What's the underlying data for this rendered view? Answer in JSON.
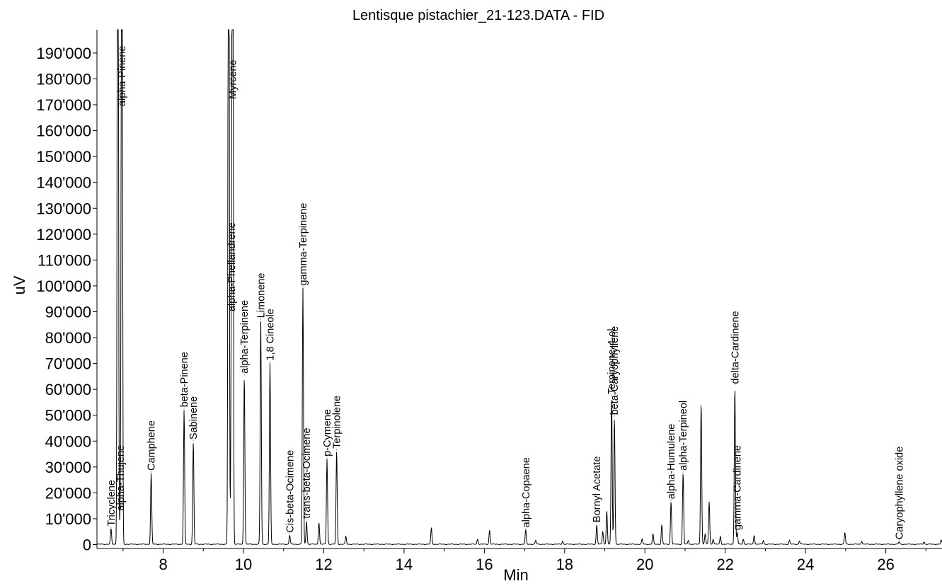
{
  "chart_data": {
    "type": "line",
    "title": "Lentisque pistachier_21-123.DATA - FID",
    "xlabel": "Min",
    "ylabel": "uV",
    "xlim": [
      6.35,
      27.4
    ],
    "ylim": [
      -1500,
      199000
    ],
    "xticks": [
      8,
      10,
      12,
      14,
      16,
      18,
      20,
      22,
      24,
      26
    ],
    "xtick_labels": [
      "8",
      "10",
      "12",
      "14",
      "16",
      "18",
      "20",
      "22",
      "24",
      "26"
    ],
    "yticks": [
      0,
      10000,
      20000,
      30000,
      40000,
      50000,
      60000,
      70000,
      80000,
      90000,
      100000,
      110000,
      120000,
      130000,
      140000,
      150000,
      160000,
      170000,
      180000,
      190000
    ],
    "ytick_labels": [
      "0",
      "10'000",
      "20'000",
      "30'000",
      "40'000",
      "50'000",
      "60'000",
      "70'000",
      "80'000",
      "90'000",
      "100'000",
      "110'000",
      "120'000",
      "130'000",
      "140'000",
      "150'000",
      "160'000",
      "170'000",
      "180'000",
      "190'000"
    ],
    "grid": false,
    "peaks": [
      {
        "rt": 6.7,
        "height": 6000,
        "label": "Tricyclene"
      },
      {
        "rt": 6.87,
        "height": 400000,
        "label": ""
      },
      {
        "rt": 6.93,
        "height": 12000,
        "label": "alpha-Thujene"
      },
      {
        "rt": 6.97,
        "height": 400000,
        "label": "alpha-Pinene"
      },
      {
        "rt": 7.7,
        "height": 27500,
        "label": "Camphene"
      },
      {
        "rt": 8.52,
        "height": 52000,
        "label": "beta-Pinene"
      },
      {
        "rt": 8.75,
        "height": 39500,
        "label": "Sabinene"
      },
      {
        "rt": 9.63,
        "height": 400000,
        "label": ""
      },
      {
        "rt": 9.73,
        "height": 400000,
        "label": "Myrcene"
      },
      {
        "rt": 9.7,
        "height": 89000,
        "label": "alpha-Phellandrene"
      },
      {
        "rt": 10.02,
        "height": 65000,
        "label": "alpha-Terpinene"
      },
      {
        "rt": 10.43,
        "height": 86500,
        "label": "Limonene"
      },
      {
        "rt": 10.66,
        "height": 70000,
        "label": "1,8 Cineole"
      },
      {
        "rt": 11.15,
        "height": 3500,
        "label": "Cis-beta-Ocimene"
      },
      {
        "rt": 11.48,
        "height": 99000,
        "label": "gamma-Terpinene"
      },
      {
        "rt": 11.57,
        "height": 9000,
        "label": "trans-beta-Ocimene"
      },
      {
        "rt": 11.88,
        "height": 8500,
        "label": ""
      },
      {
        "rt": 12.08,
        "height": 33000,
        "label": "p-Cymene"
      },
      {
        "rt": 12.32,
        "height": 36000,
        "label": "Terpinolene"
      },
      {
        "rt": 12.55,
        "height": 3000,
        "label": ""
      },
      {
        "rt": 14.68,
        "height": 6300,
        "label": ""
      },
      {
        "rt": 15.83,
        "height": 2000,
        "label": ""
      },
      {
        "rt": 16.13,
        "height": 5500,
        "label": ""
      },
      {
        "rt": 17.03,
        "height": 5500,
        "label": "alpha-Copaene"
      },
      {
        "rt": 17.28,
        "height": 1500,
        "label": ""
      },
      {
        "rt": 17.95,
        "height": 1200,
        "label": ""
      },
      {
        "rt": 18.8,
        "height": 7500,
        "label": "Bornyl Acetate"
      },
      {
        "rt": 18.95,
        "height": 5000,
        "label": ""
      },
      {
        "rt": 19.05,
        "height": 13000,
        "label": ""
      },
      {
        "rt": 19.17,
        "height": 57000,
        "label": "Terpinene-4-ol"
      },
      {
        "rt": 19.24,
        "height": 49000,
        "label": "beta-Caryophyllene"
      },
      {
        "rt": 19.93,
        "height": 2000,
        "label": ""
      },
      {
        "rt": 20.2,
        "height": 4000,
        "label": ""
      },
      {
        "rt": 20.42,
        "height": 7500,
        "label": ""
      },
      {
        "rt": 20.65,
        "height": 16500,
        "label": "alpha-Humulene"
      },
      {
        "rt": 20.95,
        "height": 27500,
        "label": "alpha-Terpineol"
      },
      {
        "rt": 21.08,
        "height": 1500,
        "label": ""
      },
      {
        "rt": 21.4,
        "height": 55000,
        "label": ""
      },
      {
        "rt": 21.5,
        "height": 4000,
        "label": ""
      },
      {
        "rt": 21.6,
        "height": 16500,
        "label": ""
      },
      {
        "rt": 21.7,
        "height": 2000,
        "label": ""
      },
      {
        "rt": 21.88,
        "height": 3000,
        "label": ""
      },
      {
        "rt": 22.24,
        "height": 61000,
        "label": "delta-Cardinene"
      },
      {
        "rt": 22.3,
        "height": 4500,
        "label": "gamma-Cardinene"
      },
      {
        "rt": 22.45,
        "height": 2000,
        "label": ""
      },
      {
        "rt": 22.72,
        "height": 3500,
        "label": ""
      },
      {
        "rt": 22.95,
        "height": 1500,
        "label": ""
      },
      {
        "rt": 23.6,
        "height": 1500,
        "label": ""
      },
      {
        "rt": 23.85,
        "height": 1300,
        "label": ""
      },
      {
        "rt": 24.98,
        "height": 4500,
        "label": ""
      },
      {
        "rt": 25.4,
        "height": 1200,
        "label": ""
      },
      {
        "rt": 26.33,
        "height": 900,
        "label": "Caryophyllene oxide"
      },
      {
        "rt": 26.95,
        "height": 1000,
        "label": ""
      },
      {
        "rt": 27.38,
        "height": 1500,
        "label": ""
      }
    ]
  }
}
